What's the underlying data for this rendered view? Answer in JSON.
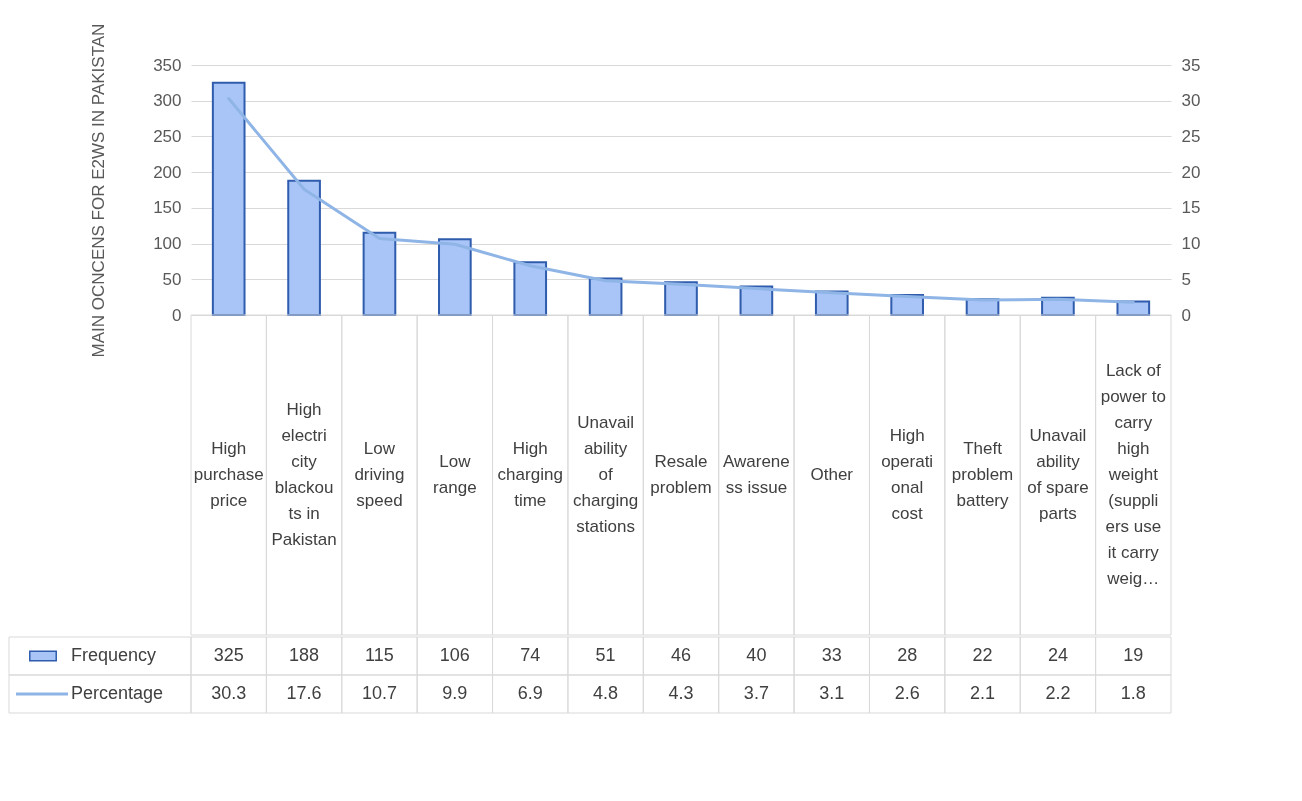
{
  "chart_data": {
    "type": "bar",
    "ylabel": "MAIN OCNCENS FOR E2WS  IN PAKISTAN",
    "categories": [
      "High purchase price",
      "High electricity blackouts in Pakistan",
      "Low driving speed",
      "Low range",
      "High charging time",
      "Unavailability of charging stations",
      "Resale problem",
      "Awareness issue",
      "Other",
      "High operational cost",
      "Theft problem battery",
      "Unavailability of spare parts",
      "Lack of power to carry high weight (suppliers use it carry weig…"
    ],
    "series": [
      {
        "name": "Frequency",
        "type": "bar",
        "color": "#a9c5f7",
        "values": [
          325,
          188,
          115,
          106,
          74,
          51,
          46,
          40,
          33,
          28,
          22,
          24,
          19
        ]
      },
      {
        "name": "Percentage",
        "type": "line",
        "axis": "y2",
        "color": "#8fb4e6",
        "values": [
          30.3,
          17.6,
          10.7,
          9.9,
          6.9,
          4.8,
          4.3,
          3.7,
          3.1,
          2.6,
          2.1,
          2.2,
          1.8
        ]
      }
    ],
    "ylim": [
      0,
      350
    ],
    "yticks": [
      0,
      50,
      100,
      150,
      200,
      250,
      300,
      350
    ],
    "y2lim": [
      0,
      35
    ],
    "y2ticks": [
      0,
      5,
      10,
      15,
      20,
      25,
      30,
      35
    ],
    "grid": "y",
    "legend": "bottom",
    "data_labels": true,
    "marker": "none",
    "line_style": "solid"
  }
}
